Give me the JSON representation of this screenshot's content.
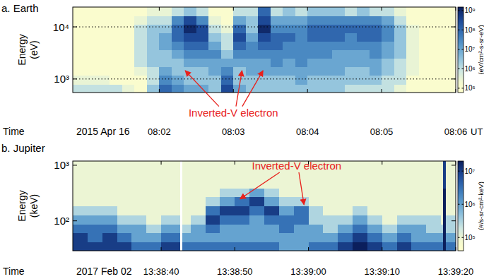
{
  "chart_data": [
    {
      "type": "heatmap",
      "title": "a. Earth",
      "y_label": [
        "Energy",
        "(eV)"
      ],
      "x_label": "Time",
      "date": "2015 Apr 16",
      "x_unit": "UT",
      "log": "y",
      "grid": true,
      "xlim": [
        50,
        360
      ],
      "xticks": [
        {
          "value": 120,
          "label": "08:02"
        },
        {
          "value": 180,
          "label": "08:03"
        },
        {
          "value": 240,
          "label": "08:04"
        },
        {
          "value": 300,
          "label": "08:05"
        },
        {
          "value": 360,
          "label": "08:06"
        }
      ],
      "ylim": [
        550,
        24000
      ],
      "yticks": [
        {
          "value": 1000,
          "label": "10³"
        },
        {
          "value": 10000,
          "label": "10⁴"
        }
      ],
      "x_bins": [
        50,
        60,
        70,
        80,
        90,
        100,
        110,
        120,
        130,
        140,
        150,
        160,
        170,
        180,
        190,
        200,
        210,
        220,
        230,
        240,
        250,
        260,
        270,
        280,
        290,
        300,
        310,
        320,
        330,
        340,
        350,
        360
      ],
      "y_bins": [
        550,
        800,
        1170,
        1710,
        2490,
        3640,
        5310,
        7740,
        11300,
        16500,
        24000
      ],
      "cells": [
        [
          1000000.0,
          300000.0,
          100000.0,
          100000.0,
          100000.0,
          100000.0,
          100000.0,
          100000.0,
          100000.0,
          100000.0
        ],
        [
          1000000.0,
          300000.0,
          100000.0,
          100000.0,
          100000.0,
          100000.0,
          100000.0,
          100000.0,
          100000.0,
          100000.0
        ],
        [
          1000000.0,
          300000.0,
          100000.0,
          100000.0,
          100000.0,
          100000.0,
          100000.0,
          100000.0,
          100000.0,
          100000.0
        ],
        [
          1000000.0,
          100000.0,
          100000.0,
          100000.0,
          100000.0,
          100000.0,
          100000.0,
          100000.0,
          100000.0,
          100000.0
        ],
        [
          300000.0,
          100000.0,
          100000.0,
          100000.0,
          100000.0,
          100000.0,
          100000.0,
          100000.0,
          100000.0,
          100000.0
        ],
        [
          100000.0,
          100000.0,
          300000.0,
          1000000.0,
          1000000.0,
          1000000.0,
          1000000.0,
          1000000.0,
          300000.0,
          100000.0
        ],
        [
          3000000.0,
          1000000.0,
          1000000.0,
          3000000.0,
          3000000.0,
          3000000.0,
          3000000.0,
          3000000.0,
          1000000.0,
          300000.0
        ],
        [
          100000000.0,
          30000000.0,
          10000000.0,
          3000000.0,
          3000000.0,
          10000000.0,
          10000000.0,
          3000000.0,
          1000000.0,
          300000.0
        ],
        [
          30000000.0,
          10000000.0,
          3000000.0,
          3000000.0,
          10000000.0,
          30000000.0,
          100000000.0,
          100000000.0,
          30000000.0,
          1000000.0
        ],
        [
          10000000.0,
          3000000.0,
          3000000.0,
          10000000.0,
          30000000.0,
          100000000.0,
          300000000.0,
          1000000000.0,
          300000000.0,
          3000000.0
        ],
        [
          10000000.0,
          3000000.0,
          3000000.0,
          10000000.0,
          30000000.0,
          100000000.0,
          300000000.0,
          300000000.0,
          30000000.0,
          1000000.0
        ],
        [
          3000000.0,
          3000000.0,
          10000000.0,
          10000000.0,
          30000000.0,
          10000000.0,
          3000000.0,
          1000000.0,
          300000.0,
          100000.0
        ],
        [
          300000000.0,
          100000000.0,
          30000000.0,
          10000000.0,
          3000000.0,
          1000000.0,
          1000000.0,
          300000.0,
          100000.0,
          100000.0
        ],
        [
          10000000.0,
          3000000.0,
          3000000.0,
          10000000.0,
          30000000.0,
          100000000.0,
          300000000.0,
          100000000.0,
          10000000.0,
          1000000.0
        ],
        [
          3000000.0,
          3000000.0,
          10000000.0,
          10000000.0,
          30000000.0,
          30000000.0,
          10000000.0,
          3000000.0,
          3000000.0,
          1000000.0
        ],
        [
          3000000.0,
          3000000.0,
          10000000.0,
          10000000.0,
          30000000.0,
          100000000.0,
          300000000.0,
          1000000000.0,
          300000000.0,
          100000000.0
        ],
        [
          3000000.0,
          3000000.0,
          10000000.0,
          30000000.0,
          30000000.0,
          100000000.0,
          100000000.0,
          30000000.0,
          10000000.0,
          1000000.0
        ],
        [
          3000000.0,
          3000000.0,
          10000000.0,
          10000000.0,
          30000000.0,
          30000000.0,
          100000000.0,
          30000000.0,
          10000000.0,
          3000000.0
        ],
        [
          3000000.0,
          10000000.0,
          10000000.0,
          30000000.0,
          30000000.0,
          30000000.0,
          30000000.0,
          30000000.0,
          10000000.0,
          1000000.0
        ],
        [
          3000000.0,
          3000000.0,
          10000000.0,
          10000000.0,
          30000000.0,
          30000000.0,
          100000000.0,
          100000000.0,
          30000000.0,
          3000000.0
        ],
        [
          3000000.0,
          3000000.0,
          10000000.0,
          10000000.0,
          30000000.0,
          30000000.0,
          100000000.0,
          100000000.0,
          30000000.0,
          3000000.0
        ],
        [
          3000000.0,
          3000000.0,
          10000000.0,
          10000000.0,
          10000000.0,
          30000000.0,
          100000000.0,
          100000000.0,
          30000000.0,
          3000000.0
        ],
        [
          1000000.0,
          3000000.0,
          3000000.0,
          10000000.0,
          10000000.0,
          30000000.0,
          30000000.0,
          100000000.0,
          30000000.0,
          1000000.0
        ],
        [
          1000000.0,
          3000000.0,
          3000000.0,
          10000000.0,
          10000000.0,
          30000000.0,
          100000000.0,
          100000000.0,
          30000000.0,
          3000000.0
        ],
        [
          1000000.0,
          3000000.0,
          10000000.0,
          10000000.0,
          30000000.0,
          30000000.0,
          100000000.0,
          100000000.0,
          30000000.0,
          1000000.0
        ],
        [
          1000000.0,
          1000000.0,
          3000000.0,
          3000000.0,
          10000000.0,
          10000000.0,
          30000000.0,
          30000000.0,
          10000000.0,
          1000000.0
        ],
        [
          300000.0,
          1000000.0,
          1000000.0,
          1000000.0,
          3000000.0,
          3000000.0,
          3000000.0,
          3000000.0,
          1000000.0,
          300000.0
        ],
        [
          100000.0,
          100000.0,
          300000.0,
          300000.0,
          300000.0,
          300000.0,
          300000.0,
          300000.0,
          100000.0,
          100000.0
        ],
        [
          100000.0,
          100000.0,
          100000.0,
          100000.0,
          100000.0,
          100000.0,
          100000.0,
          100000.0,
          100000.0,
          100000.0
        ],
        [
          100000.0,
          100000.0,
          100000.0,
          100000.0,
          100000.0,
          100000.0,
          100000.0,
          100000.0,
          100000.0,
          100000.0
        ],
        [
          100000.0,
          100000.0,
          100000.0,
          100000.0,
          100000.0,
          100000.0,
          100000.0,
          100000.0,
          100000.0,
          100000.0
        ]
      ],
      "colorbar_lim": [
        60000.0,
        1500000000.0
      ],
      "colorbar_ticks": [
        {
          "value": 100000.0,
          "label": "10⁵"
        },
        {
          "value": 1000000.0,
          "label": "10⁶"
        },
        {
          "value": 10000000.0,
          "label": "10⁷"
        },
        {
          "value": 100000000.0,
          "label": "10⁸"
        },
        {
          "value": 1000000000.0,
          "label": "10⁹"
        }
      ],
      "colorbar_label": "(eV/cm²-s-sr-eV)",
      "annotations": [
        {
          "text": "Inverted-V electron",
          "x": 180,
          "y": 225,
          "arrows": [
            {
              "x": 141,
              "y": 1450
            },
            {
              "x": 187,
              "y": 1450
            },
            {
              "x": 204,
              "y": 1450
            }
          ]
        }
      ]
    },
    {
      "type": "heatmap",
      "title": "b. Jupiter",
      "y_label": [
        "Energy",
        "(keV)"
      ],
      "x_label": "Time",
      "date": "2017 Feb 02",
      "log": "y",
      "grid": false,
      "xlim": [
        28,
        80
      ],
      "xticks": [
        {
          "value": 40,
          "label": "13:38:40"
        },
        {
          "value": 50,
          "label": "13:38:50"
        },
        {
          "value": 60,
          "label": "13:39:00"
        },
        {
          "value": 70,
          "label": "13:39:10"
        },
        {
          "value": 80,
          "label": "13:39:20"
        }
      ],
      "ylim": [
        29,
        1190
      ],
      "yticks": [
        {
          "value": 100,
          "label": "10²"
        },
        {
          "value": 1000,
          "label": "10³"
        }
      ],
      "x_bins": [
        28,
        30,
        32,
        34,
        36,
        38,
        40,
        42,
        42.5,
        42.9,
        44,
        46,
        48,
        50,
        52,
        54,
        56,
        58,
        60,
        62,
        64,
        66,
        68,
        70,
        72,
        74,
        76,
        78,
        78.3,
        78.7,
        80
      ],
      "y_bins": [
        29,
        42,
        61,
        88,
        128,
        186,
        270,
        391,
        567,
        822,
        1190
      ],
      "cells": [
        [
          10000000.0,
          10000000.0,
          3000000.0,
          1000000.0,
          300000.0,
          100000.0,
          100000.0,
          100000.0,
          100000.0,
          100000.0
        ],
        [
          10000000.0,
          3000000.0,
          3000000.0,
          1000000.0,
          300000.0,
          100000.0,
          100000.0,
          100000.0,
          100000.0,
          100000.0
        ],
        [
          10000000.0,
          10000000.0,
          3000000.0,
          1000000.0,
          300000.0,
          100000.0,
          100000.0,
          100000.0,
          100000.0,
          100000.0
        ],
        [
          10000000.0,
          3000000.0,
          1000000.0,
          300000.0,
          100000.0,
          100000.0,
          100000.0,
          100000.0,
          100000.0,
          100000.0
        ],
        [
          3000000.0,
          1000000.0,
          1000000.0,
          300000.0,
          100000.0,
          100000.0,
          100000.0,
          100000.0,
          100000.0,
          100000.0
        ],
        [
          3000000.0,
          1000000.0,
          300000.0,
          100000.0,
          100000.0,
          100000.0,
          100000.0,
          100000.0,
          100000.0,
          100000.0
        ],
        [
          10000000.0,
          3000000.0,
          1000000.0,
          300000.0,
          100000.0,
          100000.0,
          100000.0,
          100000.0,
          100000.0,
          100000.0
        ],
        [
          10000000.0,
          3000000.0,
          1000000.0,
          300000.0,
          100000.0,
          100000.0,
          100000.0,
          100000.0,
          100000.0,
          100000.0
        ],
        [
          null,
          null,
          null,
          null,
          null,
          null,
          null,
          null,
          null,
          null
        ],
        [
          3000000.0,
          1000000.0,
          300000.0,
          100000.0,
          100000.0,
          100000.0,
          100000.0,
          100000.0,
          100000.0,
          100000.0
        ],
        [
          3000000.0,
          1000000.0,
          1000000.0,
          300000.0,
          100000.0,
          100000.0,
          100000.0,
          100000.0,
          100000.0,
          100000.0
        ],
        [
          3000000.0,
          1000000.0,
          3000000.0,
          10000000.0,
          3000000.0,
          300000.0,
          100000.0,
          100000.0,
          100000.0,
          100000.0
        ],
        [
          3000000.0,
          1000000.0,
          1000000.0,
          3000000.0,
          10000000.0,
          1000000.0,
          300000.0,
          100000.0,
          100000.0,
          100000.0
        ],
        [
          3000000.0,
          1000000.0,
          1000000.0,
          3000000.0,
          10000000.0,
          3000000.0,
          300000.0,
          100000.0,
          100000.0,
          100000.0
        ],
        [
          3000000.0,
          1000000.0,
          1000000.0,
          1000000.0,
          3000000.0,
          10000000.0,
          1000000.0,
          100000.0,
          100000.0,
          100000.0
        ],
        [
          3000000.0,
          1000000.0,
          1000000.0,
          3000000.0,
          10000000.0,
          1000000.0,
          300000.0,
          100000.0,
          100000.0,
          100000.0
        ],
        [
          1000000.0,
          1000000.0,
          3000000.0,
          3000000.0,
          1000000.0,
          300000.0,
          100000.0,
          100000.0,
          100000.0,
          100000.0
        ],
        [
          1000000.0,
          1000000.0,
          1000000.0,
          3000000.0,
          3000000.0,
          300000.0,
          100000.0,
          100000.0,
          100000.0,
          100000.0
        ],
        [
          3000000.0,
          1000000.0,
          1000000.0,
          300000.0,
          300000.0,
          100000.0,
          100000.0,
          100000.0,
          100000.0,
          100000.0
        ],
        [
          3000000.0,
          1000000.0,
          300000.0,
          300000.0,
          100000.0,
          100000.0,
          100000.0,
          100000.0,
          100000.0,
          100000.0
        ],
        [
          10000000.0,
          3000000.0,
          1000000.0,
          300000.0,
          100000.0,
          100000.0,
          100000.0,
          100000.0,
          100000.0,
          100000.0
        ],
        [
          30000000.0,
          10000000.0,
          3000000.0,
          1000000.0,
          300000.0,
          100000.0,
          100000.0,
          100000.0,
          100000.0,
          100000.0
        ],
        [
          10000000.0,
          3000000.0,
          1000000.0,
          300000.0,
          100000.0,
          100000.0,
          100000.0,
          100000.0,
          100000.0,
          100000.0
        ],
        [
          3000000.0,
          1000000.0,
          300000.0,
          100000.0,
          100000.0,
          100000.0,
          100000.0,
          100000.0,
          100000.0,
          100000.0
        ],
        [
          10000000.0,
          3000000.0,
          1000000.0,
          300000.0,
          100000.0,
          100000.0,
          100000.0,
          100000.0,
          100000.0,
          100000.0
        ],
        [
          3000000.0,
          1000000.0,
          1000000.0,
          300000.0,
          100000.0,
          100000.0,
          100000.0,
          100000.0,
          100000.0,
          100000.0
        ],
        [
          3000000.0,
          1000000.0,
          300000.0,
          300000.0,
          100000.0,
          100000.0,
          100000.0,
          100000.0,
          100000.0,
          100000.0
        ],
        [
          3000000.0,
          1000000.0,
          300000.0,
          100000.0,
          100000.0,
          100000.0,
          100000.0,
          100000.0,
          100000.0,
          100000.0
        ],
        [
          30000000.0,
          30000000.0,
          30000000.0,
          30000000.0,
          20000000.0,
          20000000.0,
          20000000.0,
          10000000.0,
          10000000.0,
          10000000.0
        ],
        [
          3000000.0,
          1000000.0,
          300000.0,
          300000.0,
          100000.0,
          100000.0,
          100000.0,
          100000.0,
          100000.0,
          100000.0
        ]
      ],
      "colorbar_lim": [
        40000.0,
        20000000.0
      ],
      "colorbar_ticks": [
        {
          "value": 100000.0,
          "label": "10⁵"
        },
        {
          "value": 1000000.0,
          "label": "10⁶"
        },
        {
          "value": 10000000.0,
          "label": "10⁷"
        }
      ],
      "colorbar_label": "(#/s-sr-cm²-keV)",
      "annotations": [
        {
          "text": "Inverted-V electron",
          "x": 58.4,
          "y": 970,
          "arrows": [
            {
              "x": 50.7,
              "y": 247
            },
            {
              "x": 59.4,
              "y": 195
            }
          ]
        }
      ]
    }
  ]
}
